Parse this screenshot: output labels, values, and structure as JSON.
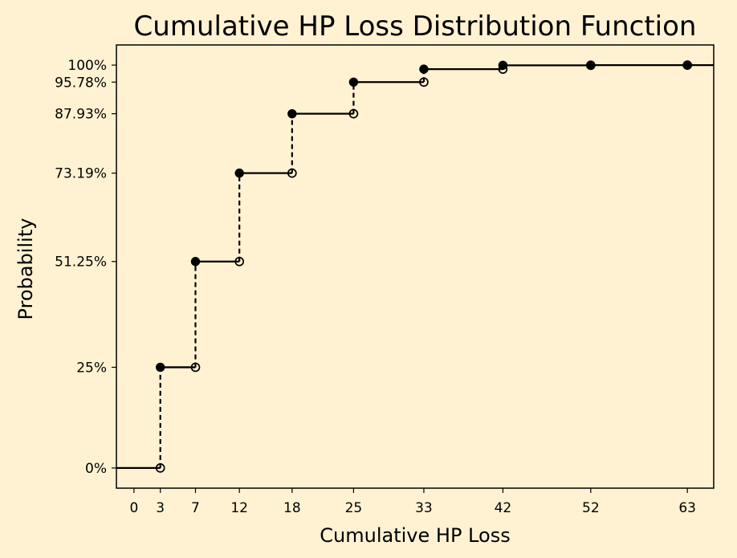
{
  "chart_data": {
    "type": "line",
    "title": "Cumulative HP Loss Distribution Function",
    "xlabel": "Cumulative HP Loss",
    "ylabel": "Probability",
    "xlim": [
      -2,
      66
    ],
    "ylim": [
      -0.05,
      1.05
    ],
    "x_ticks": [
      0,
      3,
      7,
      12,
      18,
      25,
      33,
      42,
      52,
      63
    ],
    "x_tick_labels": [
      "0",
      "3",
      "7",
      "12",
      "18",
      "25",
      "33",
      "42",
      "52",
      "63"
    ],
    "y_ticks": [
      0,
      0.25,
      0.5125,
      0.7319,
      0.8793,
      0.9578,
      1.0
    ],
    "y_tick_labels": [
      "0%",
      "25%",
      "51.25%",
      "73.19%",
      "87.93%",
      "95.78%",
      "100%"
    ],
    "grid": false,
    "series": [
      {
        "step_x": [
          3,
          7,
          12,
          18,
          25,
          33,
          42,
          52,
          63
        ],
        "y_before": [
          0,
          0.25,
          0.5125,
          0.7319,
          0.8793,
          0.9578,
          0.99,
          0.9995,
          1.0
        ],
        "y_after": [
          0.25,
          0.5125,
          0.7319,
          0.8793,
          0.9578,
          0.99,
          0.9995,
          1.0,
          1.0
        ]
      }
    ],
    "colors": {
      "background": "#fff2d3",
      "line": "#000000"
    }
  }
}
